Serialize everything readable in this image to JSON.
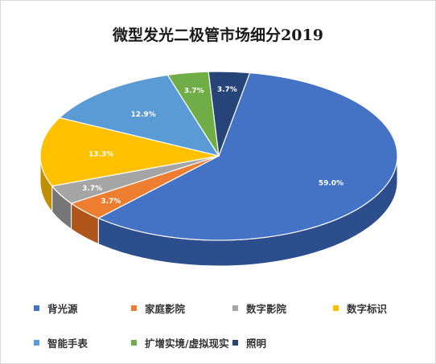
{
  "chart_data": {
    "type": "pie",
    "title": "微型发光二极管市场细分2019",
    "slices": [
      {
        "label": "背光源",
        "value": 59.0,
        "value_label": "59.0%",
        "color": "#4472c4",
        "side_color": "#2c4e8c"
      },
      {
        "label": "家庭影院",
        "value": 3.7,
        "value_label": "3.7%",
        "color": "#ed7d31",
        "side_color": "#b0561b"
      },
      {
        "label": "数字影院",
        "value": 3.7,
        "value_label": "3.7%",
        "color": "#a5a5a5",
        "side_color": "#767676"
      },
      {
        "label": "数字标识",
        "value": 13.3,
        "value_label": "13.3%",
        "color": "#ffc000",
        "side_color": "#c08f00"
      },
      {
        "label": "智能手表",
        "value": 12.9,
        "value_label": "12.9%",
        "color": "#5b9bd5",
        "side_color": "#3d72a3"
      },
      {
        "label": "扩增实境/虚拟现实",
        "value": 3.7,
        "value_label": "3.7%",
        "color": "#70ad47",
        "side_color": "#4e7f30"
      },
      {
        "label": "照明",
        "value": 3.7,
        "value_label": "3.7%",
        "color": "#264478",
        "side_color": "#172b4d"
      }
    ],
    "legend_position": "bottom"
  }
}
